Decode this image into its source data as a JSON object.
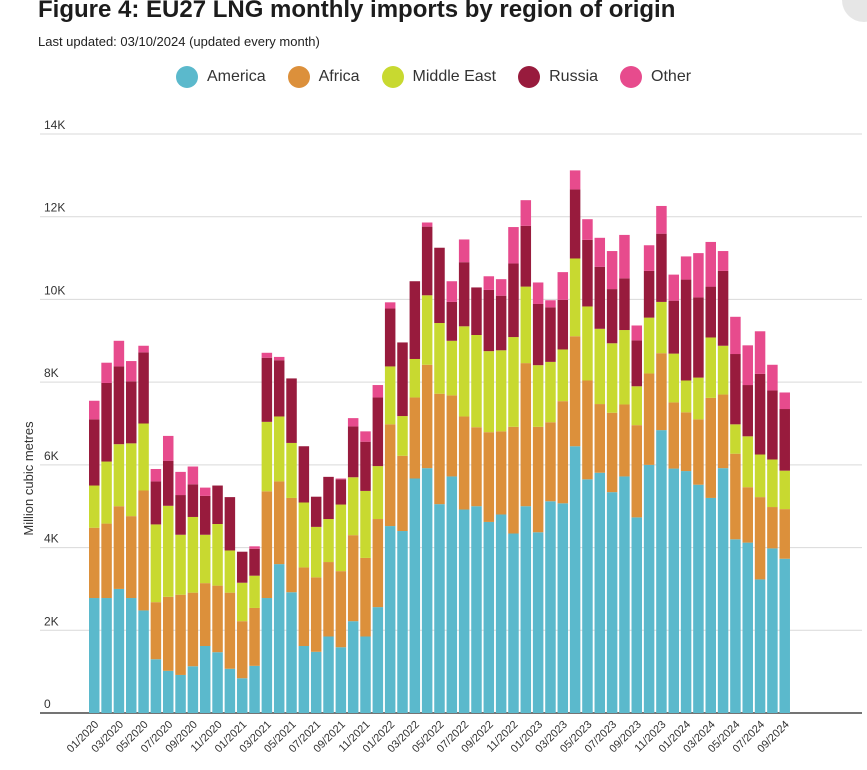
{
  "header": {
    "title": "Figure 4: EU27 LNG monthly imports by region of origin",
    "subtitle": "Last updated: 03/10/2024 (updated every month)"
  },
  "chart_data": {
    "type": "bar",
    "stacked": true,
    "title": "Figure 4: EU27 LNG monthly imports by region of origin",
    "ylabel": "Million cubic metres",
    "xlabel": "",
    "ylim": [
      0,
      14000
    ],
    "yticks": [
      0,
      2000,
      4000,
      6000,
      8000,
      10000,
      12000,
      14000
    ],
    "ytick_labels": [
      "0",
      "2K",
      "4K",
      "6K",
      "8K",
      "10K",
      "12K",
      "14K"
    ],
    "categories": [
      "01/2020",
      "02/2020",
      "03/2020",
      "04/2020",
      "05/2020",
      "06/2020",
      "07/2020",
      "08/2020",
      "09/2020",
      "10/2020",
      "11/2020",
      "12/2020",
      "01/2021",
      "02/2021",
      "03/2021",
      "04/2021",
      "05/2021",
      "06/2021",
      "07/2021",
      "08/2021",
      "09/2021",
      "10/2021",
      "11/2021",
      "12/2021",
      "01/2022",
      "02/2022",
      "03/2022",
      "04/2022",
      "05/2022",
      "06/2022",
      "07/2022",
      "08/2022",
      "09/2022",
      "10/2022",
      "11/2022",
      "12/2022",
      "01/2023",
      "02/2023",
      "03/2023",
      "04/2023",
      "05/2023",
      "06/2023",
      "07/2023",
      "08/2023",
      "09/2023",
      "10/2023",
      "11/2023",
      "12/2023",
      "01/2024",
      "02/2024",
      "03/2024",
      "04/2024",
      "05/2024",
      "06/2024",
      "07/2024",
      "08/2024",
      "09/2024"
    ],
    "xtick_labels": [
      "01/2020",
      "03/2020",
      "05/2020",
      "07/2020",
      "09/2020",
      "11/2020",
      "01/2021",
      "03/2021",
      "05/2021",
      "07/2021",
      "09/2021",
      "11/2021",
      "01/2022",
      "03/2022",
      "05/2022",
      "07/2022",
      "09/2022",
      "11/2022",
      "01/2023",
      "03/2023",
      "05/2023",
      "07/2023",
      "09/2023",
      "11/2023",
      "01/2024",
      "03/2024",
      "05/2024",
      "07/2024",
      "09/2024"
    ],
    "series": [
      {
        "name": "America",
        "color": "#5bb9cc",
        "values": [
          2780,
          2780,
          3000,
          2780,
          2480,
          1300,
          1020,
          920,
          1130,
          1620,
          1470,
          1070,
          840,
          1140,
          2780,
          3600,
          2920,
          1620,
          1480,
          1850,
          1590,
          2220,
          1850,
          2560,
          4520,
          4400,
          5670,
          5920,
          5050,
          5720,
          4920,
          5000,
          4620,
          4800,
          4340,
          5000,
          4370,
          5120,
          5070,
          6450,
          5650,
          5810,
          5340,
          5720,
          4730,
          6000,
          6840,
          5910,
          5850,
          5520,
          5200,
          5920,
          4200,
          4120,
          3230,
          3980,
          3730
        ]
      },
      {
        "name": "Africa",
        "color": "#dc903b",
        "values": [
          1700,
          1800,
          2000,
          1980,
          2900,
          1380,
          1790,
          1940,
          1780,
          1520,
          1610,
          1840,
          1380,
          1400,
          2580,
          2000,
          2280,
          1900,
          1800,
          1800,
          1840,
          2080,
          1900,
          2130,
          2460,
          1820,
          1960,
          2500,
          2670,
          1960,
          2250,
          1910,
          2170,
          2010,
          2580,
          3460,
          2550,
          1910,
          2470,
          2660,
          2390,
          1660,
          1920,
          1740,
          2230,
          2210,
          1860,
          1600,
          1420,
          1580,
          2420,
          1780,
          2070,
          1340,
          1990,
          1000,
          1200
        ]
      },
      {
        "name": "Middle East",
        "color": "#c8d930",
        "values": [
          1020,
          1500,
          1500,
          1760,
          1620,
          1880,
          2200,
          1450,
          1830,
          1170,
          1490,
          1020,
          930,
          780,
          1680,
          1570,
          1330,
          1570,
          1220,
          1040,
          1610,
          1400,
          1620,
          1280,
          1400,
          960,
          930,
          1680,
          1710,
          1320,
          2180,
          2230,
          1960,
          1960,
          2170,
          1850,
          1490,
          1460,
          1250,
          1880,
          1790,
          1820,
          1680,
          1800,
          940,
          1350,
          1240,
          1180,
          770,
          1010,
          1460,
          1180,
          710,
          1230,
          1030,
          1150,
          930
        ]
      },
      {
        "name": "Russia",
        "color": "#981b3d",
        "values": [
          1600,
          1900,
          1880,
          1500,
          1720,
          1040,
          1090,
          960,
          790,
          940,
          930,
          1290,
          750,
          650,
          1550,
          1360,
          1560,
          1360,
          730,
          1020,
          610,
          1230,
          1190,
          1660,
          1400,
          1780,
          1880,
          1660,
          1820,
          940,
          1550,
          1150,
          1480,
          1320,
          1780,
          1470,
          1480,
          1320,
          1200,
          1670,
          1610,
          1500,
          1310,
          1250,
          1110,
          1130,
          1650,
          1280,
          2440,
          1940,
          1230,
          1810,
          1700,
          1240,
          1950,
          1670,
          1490
        ]
      },
      {
        "name": "Other",
        "color": "#e74b8d",
        "values": [
          450,
          490,
          620,
          490,
          160,
          300,
          600,
          560,
          430,
          200,
          0,
          0,
          0,
          60,
          120,
          80,
          0,
          0,
          0,
          0,
          20,
          200,
          250,
          300,
          150,
          0,
          0,
          100,
          0,
          500,
          550,
          0,
          330,
          400,
          880,
          620,
          520,
          170,
          670,
          460,
          500,
          700,
          920,
          1050,
          360,
          620,
          670,
          630,
          560,
          1070,
          1080,
          480,
          900,
          960,
          1030,
          620,
          400
        ]
      }
    ],
    "legend": [
      "America",
      "Africa",
      "Middle East",
      "Russia",
      "Other"
    ],
    "legend_position": "top",
    "grid": true
  }
}
